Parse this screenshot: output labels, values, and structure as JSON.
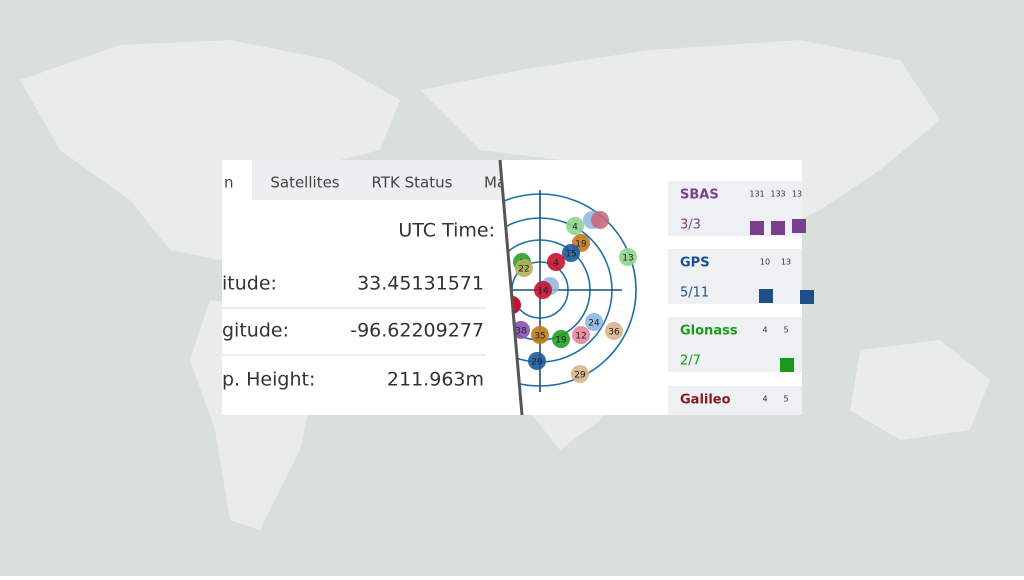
{
  "tabs": [
    "n",
    "Satellites",
    "RTK Status",
    "Ma"
  ],
  "utc_label": "UTC Time:",
  "rows": [
    {
      "label": "itude:",
      "value": "33.45131571"
    },
    {
      "label": "gitude:",
      "value": "-96.62209277"
    },
    {
      "label": "p. Height:",
      "value": "211.963m"
    }
  ],
  "satellites": [
    {
      "label": "4",
      "color": "#8fd48f"
    },
    {
      "label": "19",
      "color": "#c07a1a"
    },
    {
      "label": "15",
      "color": "#1c5a9c"
    },
    {
      "label": "4",
      "color": "#c8102e"
    },
    {
      "label": "5",
      "color": "#2aa02a"
    },
    {
      "label": "22",
      "color": "#b5b05a"
    },
    {
      "label": "13",
      "color": "#8fd48f"
    },
    {
      "label": "14",
      "color": "#c8102e"
    },
    {
      "label": "38",
      "color": "#8a4fb0"
    },
    {
      "label": "35",
      "color": "#c07a1a"
    },
    {
      "label": "19",
      "color": "#20a020"
    },
    {
      "label": "12",
      "color": "#e6879a"
    },
    {
      "label": "24",
      "color": "#8fb6e0"
    },
    {
      "label": "36",
      "color": "#d9b48a"
    },
    {
      "label": "29",
      "color": "#1c5a9c"
    },
    {
      "label": "29",
      "color": "#d9b48a"
    }
  ],
  "constellations": [
    {
      "name": "SBAS",
      "color": "#7b3f8f",
      "count": "3/3",
      "ids": [
        "131",
        "133",
        "13"
      ]
    },
    {
      "name": "GPS",
      "color": "#1c4f8a",
      "count": "5/11",
      "ids": [
        "10",
        "13"
      ]
    },
    {
      "name": "Glonass",
      "color": "#1a9a1a",
      "count": "2/7",
      "ids": [
        "4",
        "5"
      ]
    },
    {
      "name": "Galileo",
      "color": "#8a1a1a",
      "ids": [
        "4",
        "5"
      ]
    }
  ]
}
